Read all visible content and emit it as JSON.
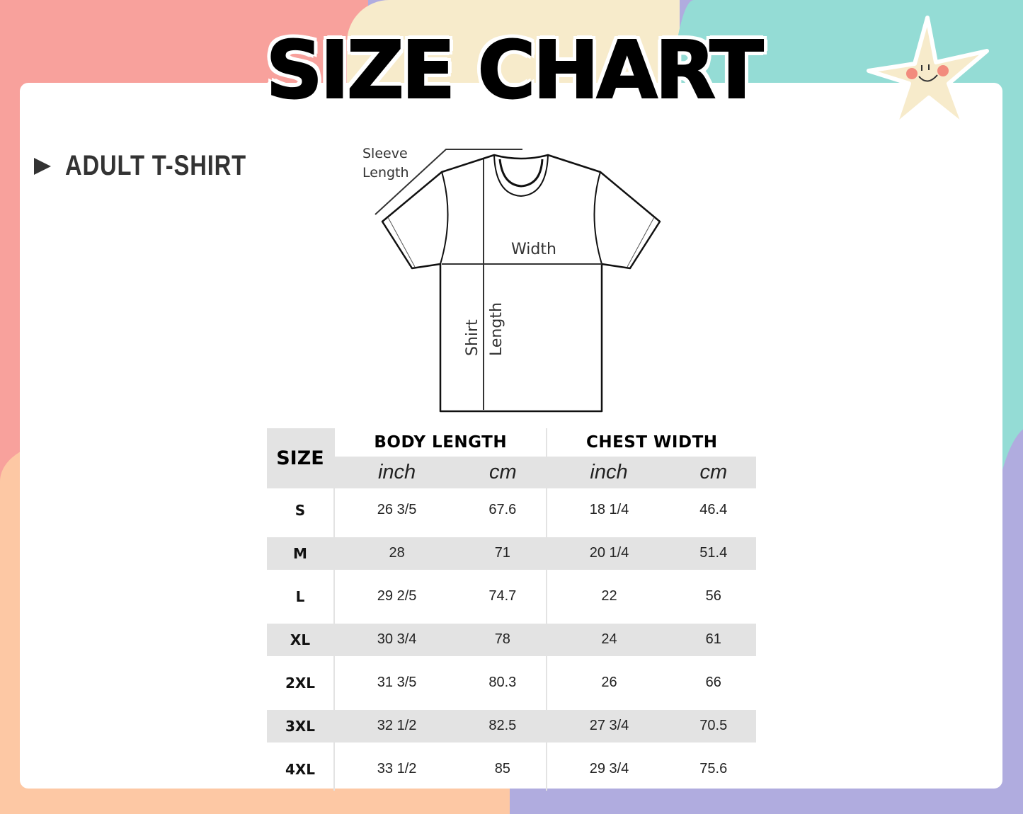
{
  "title": "SIZE CHART",
  "heading": "ADULT T-SHIRT",
  "diagram": {
    "sleeve_label_1": "Sleeve",
    "sleeve_label_2": "Length",
    "width_label": "Width",
    "shirt_label_1": "Shirt",
    "shirt_label_2": "Length"
  },
  "colors": {
    "pink": "#f8a19c",
    "cream": "#f7ebcb",
    "teal": "#94dcd5",
    "peach": "#fdc8a4",
    "lavender": "#b0acdf",
    "table_gray": "#e3e3e3"
  },
  "table": {
    "size_header": "SIZE",
    "groups": [
      "BODY LENGTH",
      "CHEST WIDTH"
    ],
    "units": [
      "inch",
      "cm",
      "inch",
      "cm"
    ],
    "rows": [
      [
        "S",
        "26 3/5",
        "67.6",
        "18 1/4",
        "46.4"
      ],
      [
        "M",
        "28",
        "71",
        "20 1/4",
        "51.4"
      ],
      [
        "L",
        "29 2/5",
        "74.7",
        "22",
        "56"
      ],
      [
        "XL",
        "30 3/4",
        "78",
        "24",
        "61"
      ],
      [
        "2XL",
        "31 3/5",
        "80.3",
        "26",
        "66"
      ],
      [
        "3XL",
        "32 1/2",
        "82.5",
        "27 3/4",
        "70.5"
      ],
      [
        "4XL",
        "33 1/2",
        "85",
        "29 3/4",
        "75.6"
      ]
    ]
  }
}
